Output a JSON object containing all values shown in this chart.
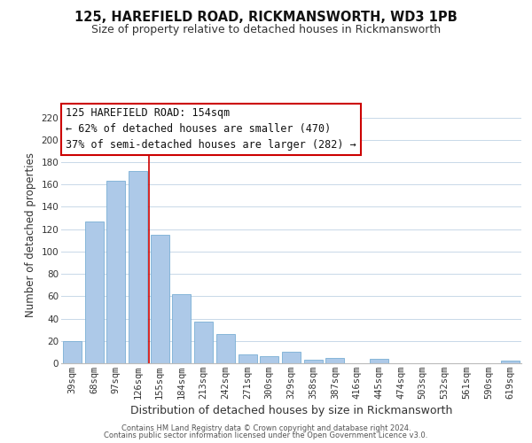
{
  "title": "125, HAREFIELD ROAD, RICKMANSWORTH, WD3 1PB",
  "subtitle": "Size of property relative to detached houses in Rickmansworth",
  "xlabel": "Distribution of detached houses by size in Rickmansworth",
  "ylabel": "Number of detached properties",
  "bar_labels": [
    "39sqm",
    "68sqm",
    "97sqm",
    "126sqm",
    "155sqm",
    "184sqm",
    "213sqm",
    "242sqm",
    "271sqm",
    "300sqm",
    "329sqm",
    "358sqm",
    "387sqm",
    "416sqm",
    "445sqm",
    "474sqm",
    "503sqm",
    "532sqm",
    "561sqm",
    "590sqm",
    "619sqm"
  ],
  "bar_values": [
    20,
    127,
    163,
    172,
    115,
    62,
    37,
    26,
    8,
    6,
    10,
    3,
    5,
    0,
    4,
    0,
    0,
    0,
    0,
    0,
    2
  ],
  "bar_color": "#adc9e8",
  "bar_edge_color": "#7aafd4",
  "vertical_line_color": "#cc0000",
  "vertical_line_index": 3.5,
  "annotation_title": "125 HAREFIELD ROAD: 154sqm",
  "annotation_line1": "← 62% of detached houses are smaller (470)",
  "annotation_line2": "37% of semi-detached houses are larger (282) →",
  "annotation_box_color": "#ffffff",
  "annotation_box_edge_color": "#cc0000",
  "ylim": [
    0,
    230
  ],
  "yticks": [
    0,
    20,
    40,
    60,
    80,
    100,
    120,
    140,
    160,
    180,
    200,
    220
  ],
  "footer1": "Contains HM Land Registry data © Crown copyright and database right 2024.",
  "footer2": "Contains public sector information licensed under the Open Government Licence v3.0.",
  "background_color": "#ffffff",
  "grid_color": "#c8d8e8",
  "title_fontsize": 10.5,
  "subtitle_fontsize": 9,
  "xlabel_fontsize": 9,
  "ylabel_fontsize": 8.5,
  "tick_fontsize": 7.5,
  "annotation_fontsize": 8.5,
  "footer_fontsize": 6
}
